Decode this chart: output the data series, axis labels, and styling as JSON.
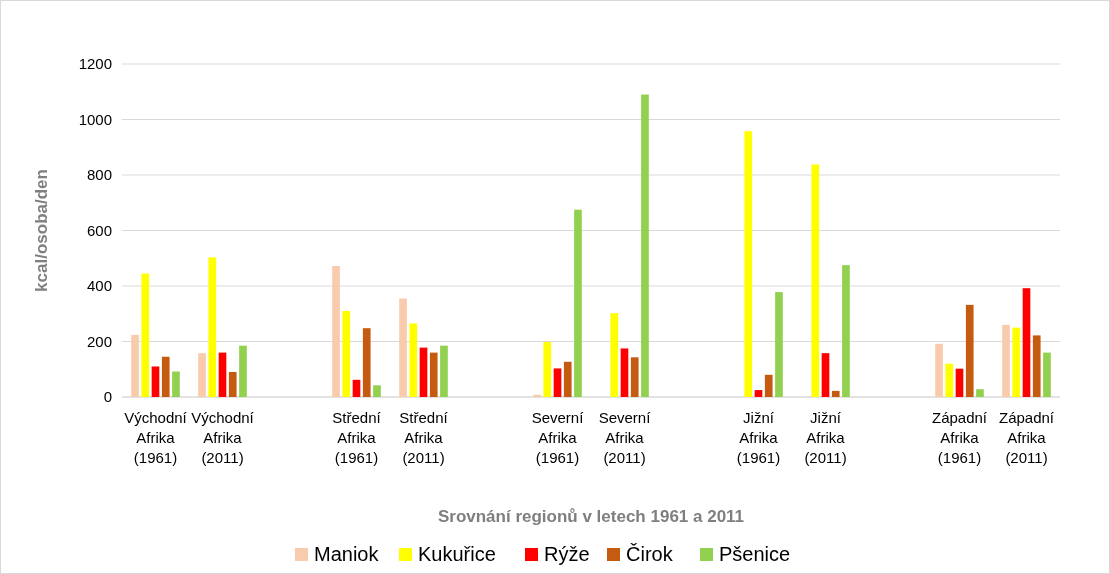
{
  "chart_data": {
    "type": "bar",
    "xlabel": "Srovnání regionů v letech 1961 a 2011",
    "ylabel": "kcal/osoba/den",
    "categories": [
      "Východní Afrika (1961)",
      "Východní Afrika (2011)",
      null,
      "Střední Afrika (1961)",
      "Střední Afrika (2011)",
      null,
      "Severní Afrika (1961)",
      "Severní Afrika (2011)",
      null,
      "Jižní Afrika (1961)",
      "Jižní Afrika (2011)",
      null,
      "Západní Afrika (1961)",
      "Západní Afrika (2011)"
    ],
    "series": [
      {
        "name": "Maniok",
        "color": "#f8cbad",
        "values": [
          224,
          158,
          null,
          472,
          355,
          null,
          8,
          0,
          null,
          0,
          0,
          null,
          192,
          260
        ]
      },
      {
        "name": "Kukuřice",
        "color": "#ffff00",
        "values": [
          445,
          503,
          null,
          310,
          265,
          null,
          198,
          302,
          null,
          958,
          838,
          null,
          120,
          250
        ]
      },
      {
        "name": "Rýže",
        "color": "#ff0000",
        "values": [
          110,
          160,
          null,
          62,
          178,
          null,
          103,
          175,
          null,
          25,
          158,
          null,
          102,
          392
        ]
      },
      {
        "name": "Čirok",
        "color": "#c55a11",
        "values": [
          145,
          90,
          null,
          248,
          160,
          null,
          127,
          143,
          null,
          80,
          22,
          null,
          332,
          222
        ]
      },
      {
        "name": "Pšenice",
        "color": "#92d050",
        "values": [
          92,
          185,
          null,
          42,
          185,
          null,
          675,
          1090,
          null,
          378,
          475,
          null,
          28,
          160
        ]
      }
    ],
    "ylim": [
      0,
      1200
    ],
    "yticks": [
      0,
      200,
      400,
      600,
      800,
      1000,
      1200
    ],
    "grid": "y",
    "legend": "bottom"
  }
}
